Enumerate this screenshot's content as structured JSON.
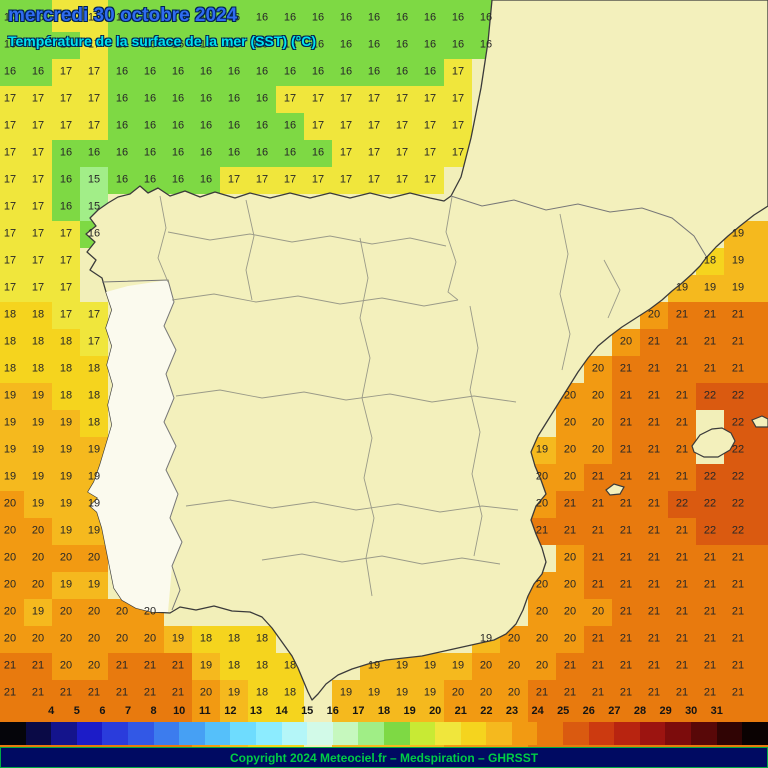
{
  "header": {
    "date": "mercredi 30 octobre 2024",
    "subtitle": "Température de la surface de la mer (SST)  (°C)"
  },
  "map": {
    "region": "Iberian Peninsula and surrounding seas",
    "land_color": "#f3f0bc",
    "coast_color": "#3a3a3a"
  },
  "grid": {
    "unit": "°C",
    "value_colors": {
      "15": "#a2ee88",
      "16": "#7ed944",
      "17": "#f0e63c",
      "18": "#f5d41e",
      "19": "#f5b91e",
      "20": "#f29a12",
      "21": "#e87a0e",
      "22": "#da5a10"
    },
    "rows": [
      "16 16 17 17 16 16 16 16 16 16 16 16 16 16 16 16 16 16 . . . . . . . . .",
      "16 16 16 17 16 16 16 16 16 16 16 16 16 16 16 16 16 16 . . . . . . . . .",
      "16 16 17 17 16 16 16 16 16 16 16 16 16 16 16 16 17 . . . . . . . . . .",
      "17 17 17 17 16 16 16 16 16 16 17 17 17 17 17 17 17 . . . . . . . . . .",
      "17 17 17 17 16 16 16 16 16 16 16 17 17 17 17 17 17 . . . . . . . . . .",
      "17 17 16 16 16 16 16 16 16 16 16 16 17 17 17 17 17 . . . . . . . . . .",
      "17 17 16 15 16 16 16 16 17 17 17 17 17 17 17 17 . . . . . . . . . . .",
      "17 17 16 15 . . . . . . . . . . . . . . . . . . . . . . .",
      "17 17 17 16 . . . . . . . . . . . . . . . . . . . . . . 19",
      "17 17 17 . . . . . . . . . . . . . . . . . . . . . . 18 19",
      "17 17 17 . . . . . . . . . . . . . . . . . . . . . 19 19 19",
      "18 18 17 17 . . . . . . . . . . . . . . . . . . . 20 21 21 21",
      "18 18 18 17 . . . . . . . . . . . . . . . . . . 20 21 21 21 21",
      "18 18 18 18 . . . . . . . . . . . . . . . . . 20 21 21 21 21 21",
      "19 19 18 18 . . . . . . . . . . . . . . . . 20 20 21 21 21 22 22",
      "19 19 19 18 . . . . . . . . . . . . . . . . 20 20 21 21 21 . 22",
      "19 19 19 19 . . . . . . . . . . . . . . . 19 20 20 21 21 21 . 22",
      "19 19 19 19 . . . . . . . . . . . . . . . 20 20 21 21 21 21 22 22",
      "20 19 19 19 . . . . . . . . . . . . . . . 20 21 21 21 21 22 22 22",
      "20 20 19 19 . . . . . . . . . . . . . . . 21 21 21 21 21 21 22 22",
      "20 20 20 20 . . . . . . . . . . . . . . . . 20 21 21 21 21 21 21",
      "20 20 19 19 . . . . . . . . . . . . . . . 20 20 21 21 21 21 21 21",
      "20 19 20 20 20 20 . . . . . . . . . . . . . 20 20 20 21 21 21 21 21",
      "20 20 20 20 20 20 19 18 18 18 . . . . . . . 19 20 20 20 21 21 21 21 21 21",
      "21 21 20 20 21 21 21 19 18 18 18 . . 19 19 19 19 20 20 20 21 21 21 21 21 21 21",
      "21 21 21 21 21 21 21 20 19 18 18 . 19 19 19 19 20 20 20 21 21 21 21 21 21 21 21"
    ]
  },
  "scale": {
    "labels": [
      "4",
      "5",
      "6",
      "7",
      "8",
      "10",
      "11",
      "12",
      "13",
      "14",
      "15",
      "16",
      "17",
      "18",
      "19",
      "20",
      "21",
      "22",
      "23",
      "24",
      "25",
      "26",
      "27",
      "28",
      "29",
      "30",
      "31"
    ],
    "colors": [
      "#05050a",
      "#0a0a46",
      "#14148c",
      "#1c1cc8",
      "#2a3cdc",
      "#3258e6",
      "#3c7cee",
      "#46a0f4",
      "#55c0fa",
      "#6edcfe",
      "#8cecff",
      "#b4f6f8",
      "#d2fae8",
      "#c6f8be",
      "#a0ee86",
      "#7ed944",
      "#c8ea34",
      "#f0e63c",
      "#f5d41e",
      "#f5b91e",
      "#f29a12",
      "#e87a0e",
      "#da5a10",
      "#cc3a10",
      "#b82410",
      "#9c1410",
      "#7c0c0c",
      "#580808",
      "#300404",
      "#0a0202"
    ]
  },
  "footer": {
    "copyright": "Copyright 2024 Meteociel.fr – Medspiration – GHRSST"
  }
}
